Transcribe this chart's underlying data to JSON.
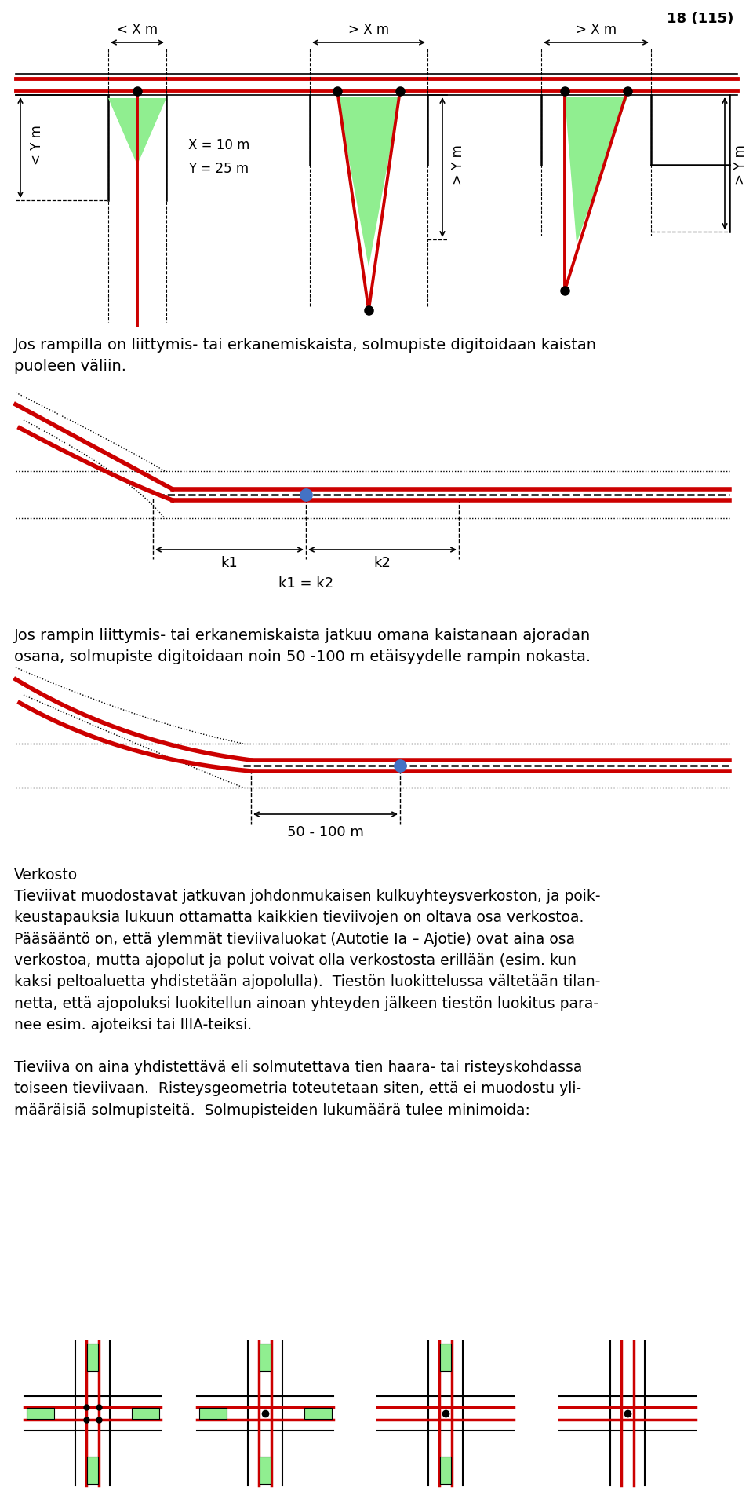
{
  "page_num": "18 (115)",
  "text1": "Jos rampilla on liittymis- tai erkanemiskaista, solmupiste digitoidaan kaistan\npuoleen väliin.",
  "text2": "Jos rampin liittymis- tai erkanemiskaista jatkuu omana kaistanaan ajoradan\nosana, solmupiste digitoidaan noin 50 -100 m etäisyydelle rampin nokasta.",
  "label_k1": "k1",
  "label_k2": "k2",
  "label_k1k2": "k1 = k2",
  "label_50100": "50 - 100 m",
  "label_Xm_lt": "< X m",
  "label_Xm_gt1": "> X m",
  "label_Xm_gt2": "> X m",
  "label_Ym_lt": "< Y m",
  "label_Ym_gt1": "> Y m",
  "label_Ym_gt2": "> Y m",
  "label_X10": "X = 10 m",
  "label_Y25": "Y = 25 m",
  "text_verkosto": "Verkosto\nTieviivat muodostavat jatkuvan johdonmukaisen kulkuyhteysverkoston, ja poik-\nkeustapauksia lukuun ottamatta kaikkien tieviivojen on oltava osa verkostoa.\nPääsääntö on, että ylemmät tieviivaluokat (Autotie Ia – Ajotie) ovat aina osa\nverkostoa, mutta ajopolut ja polut voivat olla verkostosta erillään (esim. kun\nkaksi peltoaluetta yhdistetään ajopolulla).  Tiestön luokittelussa vältetään tilan-\nnetta, että ajopoluksi luokitellun ainoan yhteyden jälkeen tiestön luokitus para-\nnee esim. ajoteiksi tai IIIA-teiksi.\n\nTieviiva on aina yhdistettävä eli solmutettava tien haara- tai risteyskohdassa\ntoiseen tieviivaan.  Risteysgeometria toteutetaan siten, että ei muodostu yli-\nmääräisiä solmupisteitä.  Solmupisteiden lukumäärä tulee minimoida:",
  "bg_color": "#ffffff",
  "red_color": "#cc0000",
  "green_color": "#90ee90",
  "black_color": "#000000",
  "blue_dot_color": "#4472c4"
}
